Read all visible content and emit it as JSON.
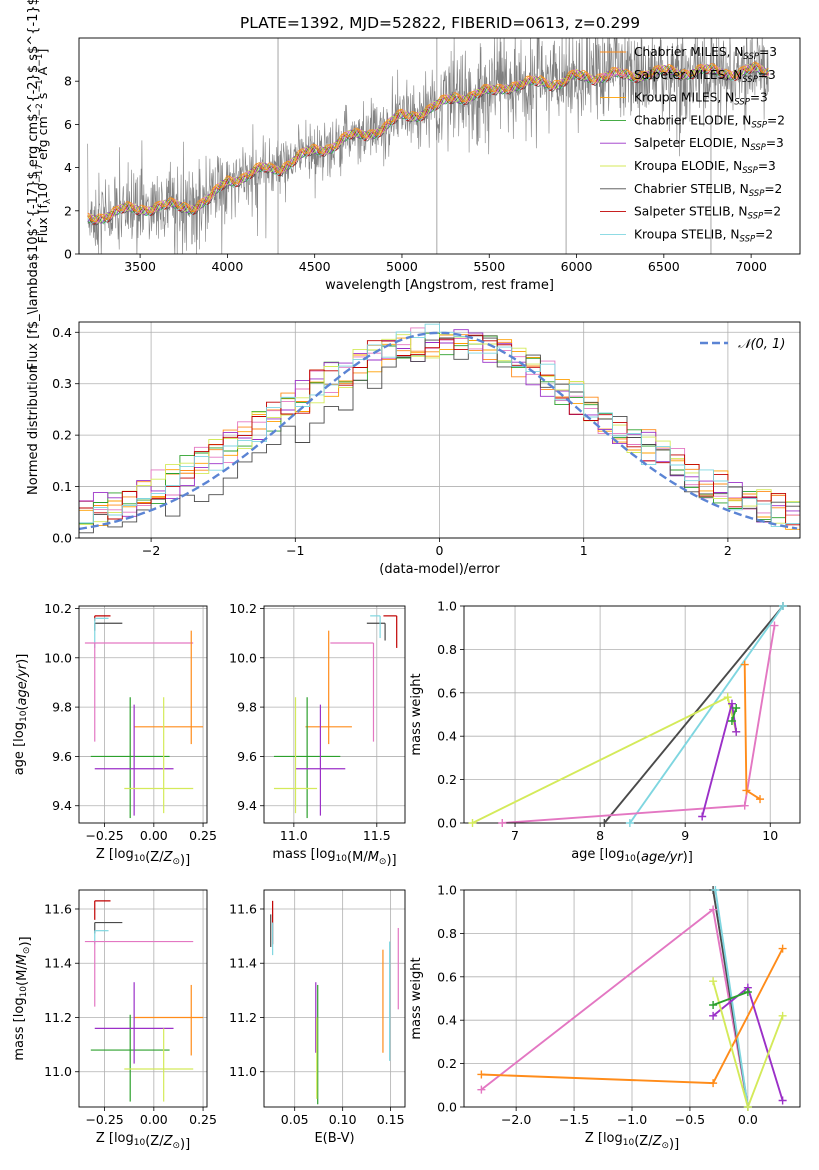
{
  "figure": {
    "title": "PLATE=1392, MJD=52822, FIBERID=0613, z=0.299",
    "colors": {
      "chabrier_miles": "#ff8c1a",
      "salpeter_miles": "#e377c2",
      "kroupa_miles": "#ff9f00",
      "chabrier_elodie": "#2ca02c",
      "salpeter_elodie": "#9b30c8",
      "kroupa_elodie": "#d4ea5a",
      "chabrier_stelib": "#4a4a4a",
      "salpeter_stelib": "#c00000",
      "kroupa_stelib": "#7fd6e0",
      "data": "#808080",
      "gauss": "#5b84d4"
    }
  },
  "chart_data": [
    {
      "id": "spectrum",
      "type": "line",
      "xlabel": "wavelength [Angstrom, rest frame]",
      "ylabel": "Flux [f$_\\lambda$10$^{-17}$ erg cm$^{-2}$ s$^{-1}$ A$^{-1}$]",
      "xlim": [
        3150,
        7280
      ],
      "ylim": [
        0,
        10
      ],
      "xticks": [
        3500,
        4000,
        4500,
        5000,
        5500,
        6000,
        6500,
        7000
      ],
      "yticks": [
        0,
        2,
        4,
        6,
        8
      ],
      "grid": false,
      "legend_placement": "top-right",
      "legend": [
        {
          "text": "Chabrier MILES, N",
          "sub": "SSP",
          "suffix": "=3",
          "color": "chabrier_miles"
        },
        {
          "text": "Salpeter MILES, N",
          "sub": "SSP",
          "suffix": "=3",
          "color": "salpeter_miles"
        },
        {
          "text": "Kroupa MILES, N",
          "sub": "SSP",
          "suffix": "=3",
          "color": "kroupa_miles"
        },
        {
          "text": "Chabrier ELODIE, N",
          "sub": "SSP",
          "suffix": "=2",
          "color": "chabrier_elodie"
        },
        {
          "text": "Salpeter ELODIE, N",
          "sub": "SSP",
          "suffix": "=3",
          "color": "salpeter_elodie"
        },
        {
          "text": "Kroupa ELODIE, N",
          "sub": "SSP",
          "suffix": "=3",
          "color": "kroupa_elodie"
        },
        {
          "text": "Chabrier STELIB, N",
          "sub": "SSP",
          "suffix": "=2",
          "color": "chabrier_stelib"
        },
        {
          "text": "Salpeter STELIB, N",
          "sub": "SSP",
          "suffix": "=2",
          "color": "salpeter_stelib"
        },
        {
          "text": "Kroupa STELIB, N",
          "sub": "SSP",
          "suffix": "=2",
          "color": "kroupa_stelib"
        }
      ],
      "continuum": [
        [
          3200,
          1.6
        ],
        [
          3300,
          1.8
        ],
        [
          3400,
          2.0
        ],
        [
          3500,
          2.1
        ],
        [
          3600,
          2.2
        ],
        [
          3700,
          2.2
        ],
        [
          3800,
          2.2
        ],
        [
          3900,
          2.5
        ],
        [
          4000,
          3.4
        ],
        [
          4100,
          3.6
        ],
        [
          4200,
          3.9
        ],
        [
          4300,
          4.0
        ],
        [
          4400,
          4.4
        ],
        [
          4500,
          4.8
        ],
        [
          4600,
          5.0
        ],
        [
          4700,
          5.4
        ],
        [
          4800,
          5.6
        ],
        [
          4900,
          5.8
        ],
        [
          5000,
          6.4
        ],
        [
          5100,
          6.5
        ],
        [
          5200,
          6.8
        ],
        [
          5300,
          7.3
        ],
        [
          5400,
          7.3
        ],
        [
          5500,
          7.5
        ],
        [
          5600,
          7.8
        ],
        [
          5700,
          7.8
        ],
        [
          5800,
          8.0
        ],
        [
          5900,
          7.9
        ],
        [
          6000,
          8.2
        ],
        [
          6100,
          8.2
        ],
        [
          6200,
          8.3
        ],
        [
          6300,
          8.2
        ],
        [
          6400,
          8.4
        ],
        [
          6500,
          8.4
        ],
        [
          6600,
          8.4
        ],
        [
          6700,
          8.5
        ],
        [
          6800,
          8.4
        ],
        [
          6900,
          8.4
        ],
        [
          7000,
          8.5
        ],
        [
          7100,
          8.4
        ]
      ]
    },
    {
      "id": "residuals",
      "type": "line",
      "xlabel": "(data-model)/error",
      "ylabel": "Normed distribution",
      "xlim": [
        -2.5,
        2.5
      ],
      "ylim": [
        0,
        0.42
      ],
      "xticks": [
        -2,
        -1,
        0,
        1,
        2
      ],
      "yticks": [
        0.0,
        0.1,
        0.2,
        0.3,
        0.4
      ],
      "grid": true,
      "legend_placement": "top-right",
      "legend": [
        {
          "text": "𝒩(0, 1)",
          "color": "gauss",
          "dash": true
        }
      ]
    },
    {
      "id": "age_vs_Z",
      "type": "scatter",
      "xlabel": "Z [log10(Z/Z⊙)]",
      "ylabel": "age  [log10(age/yr)]",
      "xlim": [
        -0.38,
        0.27
      ],
      "ylim": [
        9.33,
        10.21
      ],
      "xticks": [
        -0.25,
        0.0,
        0.25
      ],
      "yticks": [
        9.4,
        9.6,
        9.8,
        10.0,
        10.2
      ],
      "grid": true,
      "points": [
        {
          "x": -0.3,
          "y": 10.17,
          "xerr": [
            0.0,
            0.08
          ],
          "yerr": [
            0.02,
            0.0
          ],
          "color": "salpeter_stelib"
        },
        {
          "x": -0.3,
          "y": 10.14,
          "xerr": [
            0.0,
            0.14
          ],
          "yerr": [
            0.03,
            0.0
          ],
          "color": "chabrier_stelib"
        },
        {
          "x": -0.3,
          "y": 10.16,
          "xerr": [
            0.0,
            0.07
          ],
          "yerr": [
            0.12,
            0.0
          ],
          "color": "kroupa_stelib"
        },
        {
          "x": -0.3,
          "y": 10.06,
          "xerr": [
            0.05,
            0.5
          ],
          "yerr": [
            0.4,
            0.0
          ],
          "color": "salpeter_miles"
        },
        {
          "x": 0.19,
          "y": 9.72,
          "xerr": [
            0.29,
            0.06
          ],
          "yerr": [
            0.07,
            0.39
          ],
          "color": "chabrier_miles"
        },
        {
          "x": -0.12,
          "y": 9.6,
          "xerr": [
            0.2,
            0.2
          ],
          "yerr": [
            0.25,
            0.24
          ],
          "color": "chabrier_elodie"
        },
        {
          "x": -0.1,
          "y": 9.55,
          "xerr": [
            0.2,
            0.2
          ],
          "yerr": [
            0.19,
            0.26
          ],
          "color": "salpeter_elodie"
        },
        {
          "x": 0.05,
          "y": 9.47,
          "xerr": [
            0.2,
            0.15
          ],
          "yerr": [
            0.1,
            0.37
          ],
          "color": "kroupa_elodie"
        }
      ]
    },
    {
      "id": "age_vs_mass",
      "type": "scatter",
      "xlabel": "mass [log10(M/M⊙)]",
      "ylabel": "",
      "xlim": [
        10.82,
        11.67
      ],
      "ylim": [
        9.33,
        10.21
      ],
      "xticks": [
        11.0,
        11.5
      ],
      "yticks": [
        9.4,
        9.6,
        9.8,
        10.0,
        10.2
      ],
      "grid": true,
      "points": [
        {
          "x": 11.62,
          "y": 10.17,
          "xerr": [
            0.08,
            0.0
          ],
          "yerr": [
            0.13,
            0.0
          ],
          "color": "salpeter_stelib"
        },
        {
          "x": 11.55,
          "y": 10.14,
          "xerr": [
            0.11,
            0.0
          ],
          "yerr": [
            0.07,
            0.0
          ],
          "color": "chabrier_stelib"
        },
        {
          "x": 11.52,
          "y": 10.17,
          "xerr": [
            0.06,
            0.0
          ],
          "yerr": [
            0.09,
            0.0
          ],
          "color": "kroupa_stelib"
        },
        {
          "x": 11.48,
          "y": 10.06,
          "xerr": [
            0.26,
            0.0
          ],
          "yerr": [
            0.4,
            0.0
          ],
          "color": "salpeter_miles"
        },
        {
          "x": 11.21,
          "y": 9.72,
          "xerr": [
            0.14,
            0.14
          ],
          "yerr": [
            0.07,
            0.39
          ],
          "color": "chabrier_miles"
        },
        {
          "x": 11.08,
          "y": 9.6,
          "xerr": [
            0.2,
            0.2
          ],
          "yerr": [
            0.25,
            0.24
          ],
          "color": "chabrier_elodie"
        },
        {
          "x": 11.16,
          "y": 9.55,
          "xerr": [
            0.15,
            0.15
          ],
          "yerr": [
            0.19,
            0.26
          ],
          "color": "salpeter_elodie"
        },
        {
          "x": 11.01,
          "y": 9.47,
          "xerr": [
            0.13,
            0.13
          ],
          "yerr": [
            0.1,
            0.37
          ],
          "color": "kroupa_elodie"
        }
      ]
    },
    {
      "id": "mass_weight_vs_age",
      "type": "line",
      "xlabel": "age  [log10(age/yr)]",
      "ylabel": "mass weight",
      "xlim": [
        6.4,
        10.35
      ],
      "ylim": [
        0,
        1.0
      ],
      "xticks": [
        7,
        8,
        9,
        10
      ],
      "yticks": [
        0.0,
        0.2,
        0.4,
        0.6,
        0.8,
        1.0
      ],
      "grid": true,
      "series": [
        {
          "color": "chabrier_stelib",
          "points": [
            [
              8.05,
              0.0
            ],
            [
              10.15,
              1.0
            ]
          ]
        },
        {
          "color": "kroupa_stelib",
          "points": [
            [
              8.35,
              0.0
            ],
            [
              10.15,
              1.0
            ]
          ]
        },
        {
          "color": "salpeter_miles",
          "points": [
            [
              6.85,
              0.0
            ],
            [
              9.7,
              0.08
            ],
            [
              10.05,
              0.91
            ]
          ]
        },
        {
          "color": "kroupa_elodie",
          "points": [
            [
              6.5,
              0.0
            ],
            [
              9.5,
              0.58
            ],
            [
              9.6,
              0.42
            ]
          ]
        },
        {
          "color": "salpeter_elodie",
          "points": [
            [
              9.2,
              0.03
            ],
            [
              9.55,
              0.55
            ],
            [
              9.6,
              0.42
            ]
          ]
        },
        {
          "color": "chabrier_elodie",
          "points": [
            [
              9.55,
              0.47
            ],
            [
              9.6,
              0.53
            ]
          ]
        },
        {
          "color": "chabrier_miles",
          "points": [
            [
              9.7,
              0.73
            ],
            [
              9.72,
              0.15
            ],
            [
              9.88,
              0.11
            ]
          ]
        }
      ]
    },
    {
      "id": "mass_vs_Z",
      "type": "scatter",
      "xlabel": "Z [log10(Z/Z⊙)]",
      "ylabel": "mass [log10(M/M⊙)]",
      "xlim": [
        -0.38,
        0.27
      ],
      "ylim": [
        10.87,
        11.67
      ],
      "xticks": [
        -0.25,
        0.0,
        0.25
      ],
      "yticks": [
        11.0,
        11.2,
        11.4,
        11.6
      ],
      "grid": true,
      "points": [
        {
          "x": -0.3,
          "y": 11.63,
          "xerr": [
            0.0,
            0.08
          ],
          "yerr": [
            0.07,
            0.0
          ],
          "color": "salpeter_stelib"
        },
        {
          "x": -0.3,
          "y": 11.55,
          "xerr": [
            0.0,
            0.14
          ],
          "yerr": [
            0.04,
            0.0
          ],
          "color": "chabrier_stelib"
        },
        {
          "x": -0.3,
          "y": 11.52,
          "xerr": [
            0.0,
            0.07
          ],
          "yerr": [
            0.05,
            0.0
          ],
          "color": "kroupa_stelib"
        },
        {
          "x": -0.3,
          "y": 11.48,
          "xerr": [
            0.05,
            0.5
          ],
          "yerr": [
            0.24,
            0.0
          ],
          "color": "salpeter_miles"
        },
        {
          "x": 0.19,
          "y": 11.2,
          "xerr": [
            0.29,
            0.06
          ],
          "yerr": [
            0.14,
            0.12
          ],
          "color": "chabrier_miles"
        },
        {
          "x": -0.12,
          "y": 11.08,
          "xerr": [
            0.2,
            0.2
          ],
          "yerr": [
            0.19,
            0.13
          ],
          "color": "chabrier_elodie"
        },
        {
          "x": -0.1,
          "y": 11.16,
          "xerr": [
            0.2,
            0.2
          ],
          "yerr": [
            0.13,
            0.17
          ],
          "color": "salpeter_elodie"
        },
        {
          "x": 0.05,
          "y": 11.01,
          "xerr": [
            0.2,
            0.15
          ],
          "yerr": [
            0.12,
            0.15
          ],
          "color": "kroupa_elodie"
        }
      ]
    },
    {
      "id": "mass_vs_EBV",
      "type": "scatter",
      "xlabel": "E(B-V)",
      "ylabel": "",
      "xlim": [
        0.018,
        0.165
      ],
      "ylim": [
        10.87,
        11.67
      ],
      "xticks": [
        0.05,
        0.1,
        0.15
      ],
      "yticks": [
        11.0,
        11.2,
        11.4,
        11.6
      ],
      "grid": true,
      "points": [
        {
          "x": 0.027,
          "y": 11.55,
          "yerr": [
            0.08,
            0.08
          ],
          "color": "salpeter_stelib"
        },
        {
          "x": 0.025,
          "y": 11.52,
          "yerr": [
            0.06,
            0.06
          ],
          "color": "chabrier_stelib"
        },
        {
          "x": 0.027,
          "y": 11.49,
          "yerr": [
            0.06,
            0.06
          ],
          "color": "kroupa_stelib"
        },
        {
          "x": 0.072,
          "y": 11.2,
          "yerr": [
            0.13,
            0.13
          ],
          "color": "salpeter_elodie"
        },
        {
          "x": 0.074,
          "y": 11.1,
          "yerr": [
            0.22,
            0.22
          ],
          "color": "chabrier_elodie"
        },
        {
          "x": 0.073,
          "y": 11.05,
          "yerr": [
            0.15,
            0.15
          ],
          "color": "kroupa_elodie"
        },
        {
          "x": 0.142,
          "y": 11.26,
          "yerr": [
            0.19,
            0.19
          ],
          "color": "chabrier_miles"
        },
        {
          "x": 0.149,
          "y": 11.26,
          "yerr": [
            0.22,
            0.22
          ],
          "color": "kroupa_stelib"
        },
        {
          "x": 0.158,
          "y": 11.38,
          "yerr": [
            0.15,
            0.15
          ],
          "color": "salpeter_miles"
        }
      ]
    },
    {
      "id": "mass_weight_vs_Z",
      "type": "line",
      "xlabel": "Z [log10(Z/Z⊙)]",
      "ylabel": "mass weight",
      "xlim": [
        -2.45,
        0.45
      ],
      "ylim": [
        0,
        1.0
      ],
      "xticks": [
        -2.0,
        -1.5,
        -1.0,
        -0.5,
        0.0
      ],
      "yticks": [
        0.0,
        0.2,
        0.4,
        0.6,
        0.8,
        1.0
      ],
      "grid": true,
      "series": [
        {
          "color": "salpeter_miles",
          "points": [
            [
              -2.3,
              0.08
            ],
            [
              -0.3,
              0.91
            ],
            [
              0.0,
              0.0
            ]
          ]
        },
        {
          "color": "chabrier_stelib",
          "points": [
            [
              -0.3,
              1.0
            ],
            [
              0.0,
              0.0
            ]
          ]
        },
        {
          "color": "kroupa_stelib",
          "points": [
            [
              -0.28,
              1.0
            ],
            [
              0.0,
              0.0
            ]
          ]
        },
        {
          "color": "chabrier_miles",
          "points": [
            [
              -2.3,
              0.15
            ],
            [
              -0.3,
              0.11
            ],
            [
              0.3,
              0.73
            ]
          ]
        },
        {
          "color": "salpeter_elodie",
          "points": [
            [
              -0.3,
              0.42
            ],
            [
              0.0,
              0.55
            ],
            [
              0.3,
              0.03
            ]
          ]
        },
        {
          "color": "kroupa_elodie",
          "points": [
            [
              -0.3,
              0.58
            ],
            [
              0.0,
              0.0
            ],
            [
              0.3,
              0.42
            ]
          ]
        },
        {
          "color": "chabrier_elodie",
          "points": [
            [
              -0.3,
              0.47
            ],
            [
              0.0,
              0.53
            ]
          ]
        }
      ]
    }
  ]
}
